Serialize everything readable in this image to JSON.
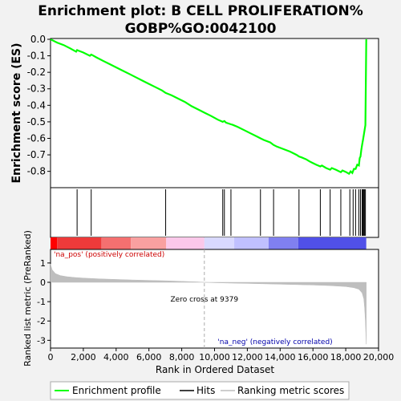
{
  "chart_data": {
    "type": "line",
    "title_lines": [
      "Enrichment plot: B CELL PROLIFERATION%",
      "GOBP%GO:0042100"
    ],
    "es_panel": {
      "ylabel": "Enrichment score (ES)",
      "ylim": [
        -0.86,
        0.0
      ],
      "yticks": [
        0.0,
        -0.1,
        -0.2,
        -0.3,
        -0.4,
        -0.5,
        -0.6,
        -0.7,
        -0.8
      ],
      "ytick_labels": [
        "0.0",
        "-0.1",
        "-0.2",
        "-0.3",
        "-0.4",
        "-0.5",
        "-0.6",
        "-0.7",
        "-0.8"
      ],
      "series": [
        {
          "name": "Enrichment profile",
          "color": "#00ff00",
          "x": [
            0,
            400,
            800,
            1200,
            1560,
            1620,
            1680,
            2000,
            2400,
            2480,
            2540,
            2800,
            3200,
            3600,
            4000,
            4400,
            4800,
            5200,
            5600,
            6000,
            6400,
            6800,
            7020,
            7100,
            7400,
            7800,
            8200,
            8600,
            9000,
            9400,
            9800,
            10200,
            10500,
            10600,
            10700,
            11000,
            11100,
            11400,
            11800,
            12200,
            12600,
            12800,
            13000,
            13400,
            13600,
            13800,
            14200,
            14600,
            15000,
            15150,
            15300,
            15600,
            15800,
            16000,
            16200,
            16450,
            16550,
            16800,
            17050,
            17150,
            17400,
            17700,
            17800,
            18000,
            18200,
            18300,
            18400,
            18500,
            18600,
            18700,
            18800,
            18850,
            18900,
            18950,
            19000,
            19050,
            19100,
            19150,
            19200,
            19250
          ],
          "y": [
            0.0,
            -0.02,
            -0.035,
            -0.055,
            -0.075,
            -0.065,
            -0.068,
            -0.08,
            -0.1,
            -0.093,
            -0.095,
            -0.11,
            -0.13,
            -0.15,
            -0.17,
            -0.19,
            -0.21,
            -0.23,
            -0.25,
            -0.27,
            -0.29,
            -0.31,
            -0.325,
            -0.328,
            -0.34,
            -0.36,
            -0.38,
            -0.405,
            -0.425,
            -0.445,
            -0.465,
            -0.487,
            -0.5,
            -0.495,
            -0.505,
            -0.515,
            -0.518,
            -0.53,
            -0.55,
            -0.57,
            -0.59,
            -0.6,
            -0.61,
            -0.625,
            -0.64,
            -0.65,
            -0.665,
            -0.68,
            -0.7,
            -0.71,
            -0.715,
            -0.728,
            -0.74,
            -0.75,
            -0.76,
            -0.77,
            -0.765,
            -0.78,
            -0.79,
            -0.78,
            -0.79,
            -0.805,
            -0.795,
            -0.803,
            -0.815,
            -0.8,
            -0.81,
            -0.785,
            -0.785,
            -0.76,
            -0.765,
            -0.72,
            -0.71,
            -0.67,
            -0.64,
            -0.61,
            -0.58,
            -0.55,
            -0.52,
            0.0
          ]
        }
      ]
    },
    "hits": {
      "name": "Hits",
      "positions": [
        1620,
        2480,
        7020,
        10500,
        10600,
        11000,
        12800,
        13600,
        15150,
        16450,
        17050,
        17700,
        18250,
        18450,
        18600,
        18800,
        18900,
        19000,
        19050,
        19100,
        19150,
        19200
      ]
    },
    "ranking_panel": {
      "ylabel": "Ranked list metric (PreRanked)",
      "xlabel": "Rank in Ordered Dataset",
      "ylim": [
        -3.4,
        1.7
      ],
      "yticks": [
        1,
        0,
        -1,
        -2,
        -3
      ],
      "ytick_labels": [
        "1",
        "0",
        "-1",
        "-2",
        "-3"
      ],
      "xlim": [
        0,
        20000
      ],
      "xticks": [
        0,
        2000,
        4000,
        6000,
        8000,
        10000,
        12000,
        14000,
        16000,
        18000,
        20000
      ],
      "xtick_labels": [
        "0",
        "2,000",
        "4,000",
        "6,000",
        "8,000",
        "10,000",
        "12,000",
        "14,000",
        "16,000",
        "18,000",
        "20,000"
      ],
      "series": [
        {
          "name": "Ranking metric scores",
          "color": "#bebebe",
          "x": [
            0,
            100,
            300,
            600,
            1000,
            1500,
            2000,
            3000,
            4000,
            5000,
            6000,
            7000,
            8000,
            9000,
            9379,
            10000,
            11000,
            12000,
            13000,
            14000,
            15000,
            16000,
            17000,
            18000,
            18500,
            18800,
            19000,
            19100,
            19150,
            19200,
            19250
          ],
          "y": [
            0.95,
            0.65,
            0.45,
            0.35,
            0.29,
            0.25,
            0.22,
            0.18,
            0.15,
            0.12,
            0.1,
            0.08,
            0.05,
            0.02,
            0.0,
            -0.02,
            -0.04,
            -0.06,
            -0.08,
            -0.1,
            -0.12,
            -0.14,
            -0.17,
            -0.22,
            -0.28,
            -0.36,
            -0.55,
            -0.85,
            -1.3,
            -2.0,
            -3.2
          ]
        }
      ],
      "zero_cross": 9379,
      "annotations": {
        "zero_cross": "Zero cross at 9379",
        "pos": "'na_pos' (positively correlated)",
        "neg": "'na_neg' (negatively correlated)"
      }
    },
    "color_bar": {
      "boundaries": [
        0,
        400,
        3100,
        4900,
        7050,
        9379,
        11200,
        13300,
        15100,
        19250
      ],
      "colors": [
        "#ff0000",
        "#ee3a3a",
        "#f47070",
        "#f9a0a0",
        "#fbc8ea",
        "#d9d9ff",
        "#c0c0ff",
        "#8080f0",
        "#5050e8"
      ]
    },
    "legend": {
      "placement": "bottom",
      "entries": [
        {
          "label": "Enrichment profile",
          "color": "#00ff00"
        },
        {
          "label": "Hits",
          "color": "#000000"
        },
        {
          "label": "Ranking metric scores",
          "color": "#bebebe"
        }
      ]
    }
  }
}
